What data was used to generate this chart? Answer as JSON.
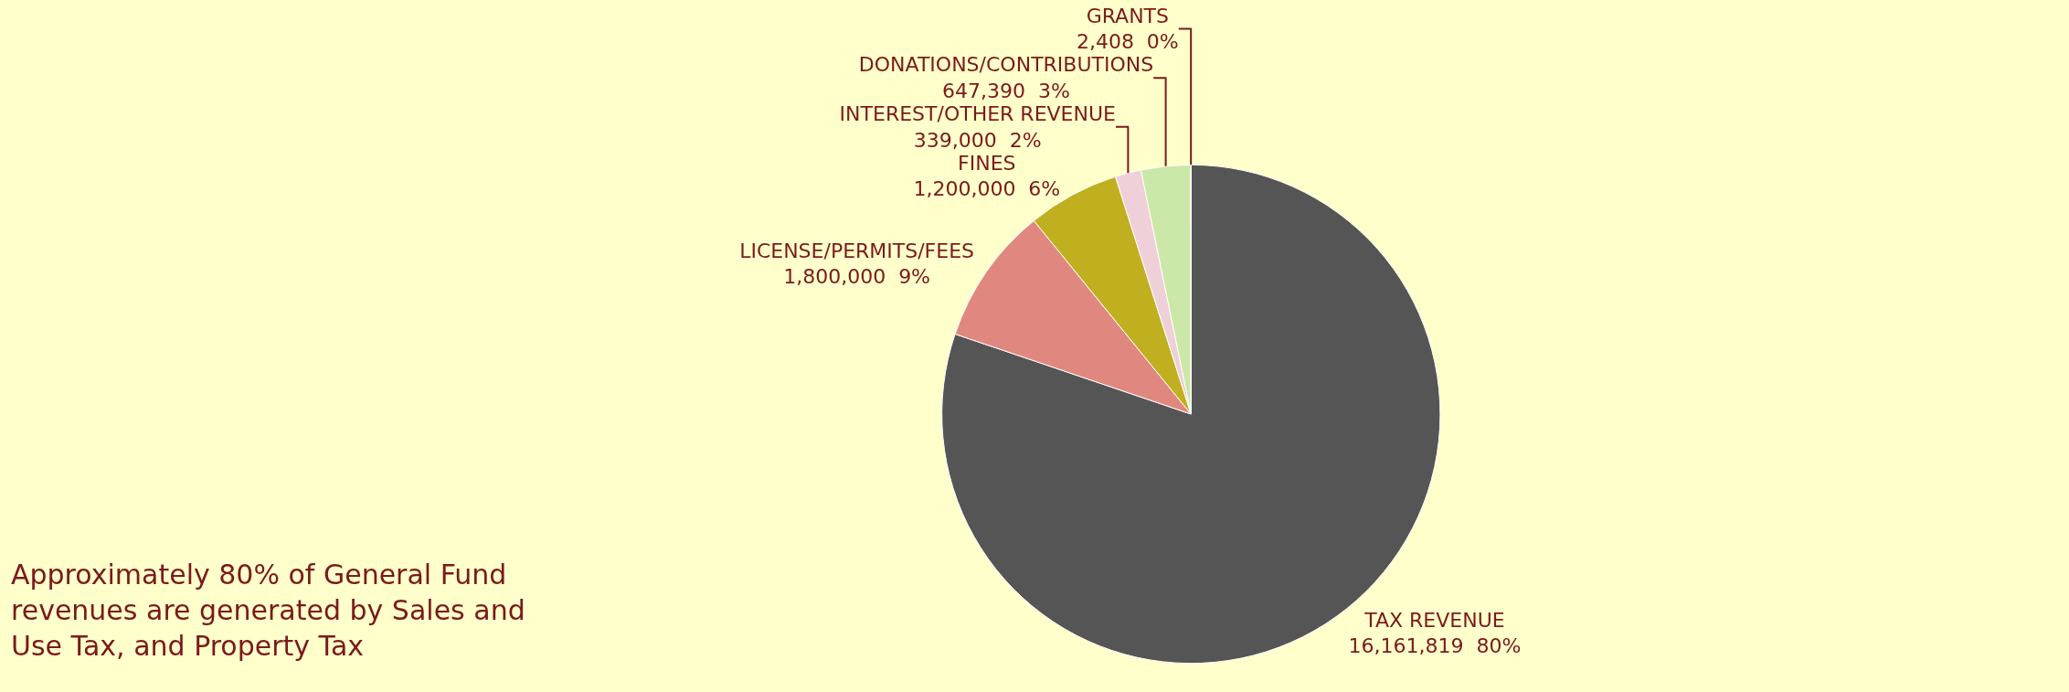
{
  "chart_data": {
    "type": "pie",
    "categories": [
      "TAX REVENUE",
      "LICENSE/PERMITS/FEES",
      "FINES",
      "INTEREST/OTHER REVENUE",
      "DONATIONS/CONTRIBUTIONS",
      "GRANTS"
    ],
    "values": [
      16161819,
      1800000,
      1200000,
      339000,
      647390,
      2408
    ],
    "value_labels": [
      "16,161,819  80%",
      "1,800,000  9%",
      "1,200,000  6%",
      "339,000  2%",
      "647,390  3%",
      "2,408  0%"
    ],
    "colors": [
      "#555555",
      "#e08880",
      "#c0b020",
      "#f0d0d8",
      "#cce8a8",
      "#9bbb59"
    ],
    "annotations": [
      "Approximately 80% of General Fund revenues are generated by Sales and Use Tax, and Property Tax"
    ]
  }
}
